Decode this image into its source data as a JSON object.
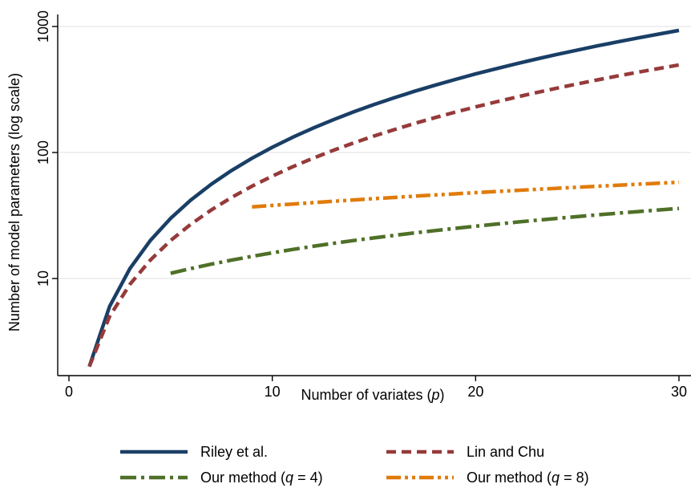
{
  "chart_data": {
    "type": "line",
    "title": "",
    "xlabel": "Number of variates",
    "xlabel_var": "p",
    "ylabel": "Number of model parameters (log scale)",
    "xlim": [
      0,
      30
    ],
    "ylim": [
      1.6,
      1000
    ],
    "yscale": "log",
    "x_ticks": [
      0,
      10,
      20,
      30
    ],
    "y_ticks": [
      10,
      100,
      1000
    ],
    "x_tick_labels": [
      "0",
      "10",
      "20",
      "30"
    ],
    "y_tick_labels": [
      "10",
      "100",
      "1000"
    ],
    "grid": "horizontal",
    "legend_position": "bottom",
    "series": [
      {
        "name": "Riley et al.",
        "color": "#1a3f66",
        "style": "solid",
        "x": [
          1,
          2,
          3,
          4,
          5,
          6,
          7,
          8,
          9,
          10,
          11,
          12,
          13,
          14,
          15,
          16,
          17,
          18,
          19,
          20,
          21,
          22,
          23,
          24,
          25,
          26,
          27,
          28,
          29,
          30
        ],
        "values": [
          2,
          6,
          12,
          20,
          30,
          42,
          56,
          72,
          90,
          110,
          132,
          156,
          182,
          210,
          240,
          272,
          306,
          342,
          380,
          420,
          462,
          506,
          552,
          600,
          650,
          702,
          756,
          812,
          870,
          930
        ]
      },
      {
        "name": "Lin and Chu",
        "color": "#963a3a",
        "style": "dash",
        "x": [
          1,
          2,
          3,
          4,
          5,
          6,
          7,
          8,
          9,
          10,
          11,
          12,
          13,
          14,
          15,
          16,
          17,
          18,
          19,
          20,
          21,
          22,
          23,
          24,
          25,
          26,
          27,
          28,
          29,
          30
        ],
        "values": [
          2,
          5,
          9,
          14,
          20,
          27,
          35,
          44,
          54,
          65,
          77,
          90,
          104,
          119,
          135,
          152,
          170,
          189,
          209,
          230,
          252,
          275,
          299,
          324,
          350,
          377,
          405,
          434,
          464,
          495
        ]
      },
      {
        "name_prefix": "Our method (",
        "name_var": "q",
        "name_suffix": " = 4)",
        "color": "#4f7028",
        "style": "dashdot",
        "x": [
          5,
          6,
          7,
          8,
          9,
          10,
          11,
          12,
          13,
          14,
          15,
          16,
          17,
          18,
          19,
          20,
          21,
          22,
          23,
          24,
          25,
          26,
          27,
          28,
          29,
          30
        ],
        "values": [
          11,
          12,
          13,
          14,
          15,
          16,
          17,
          18,
          19,
          20,
          21,
          22,
          23,
          24,
          25,
          26,
          27,
          28,
          29,
          30,
          31,
          32,
          33,
          34,
          35,
          36
        ]
      },
      {
        "name_prefix": "Our method (",
        "name_var": "q",
        "name_suffix": " = 8)",
        "color": "#e07b0a",
        "style": "dashdotdot",
        "x": [
          9,
          10,
          11,
          12,
          13,
          14,
          15,
          16,
          17,
          18,
          19,
          20,
          21,
          22,
          23,
          24,
          25,
          26,
          27,
          28,
          29,
          30
        ],
        "values": [
          37,
          38,
          39,
          40,
          41,
          42,
          43,
          44,
          45,
          46,
          47,
          48,
          49,
          50,
          51,
          52,
          53,
          54,
          55,
          56,
          57,
          58
        ]
      }
    ]
  }
}
